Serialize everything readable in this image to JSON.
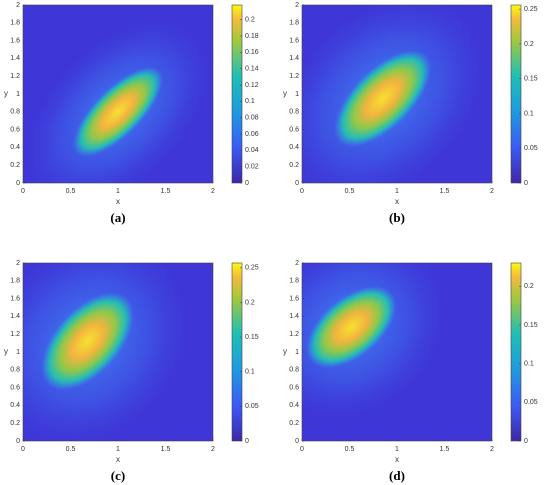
{
  "chart_data": [
    {
      "type": "heatmap",
      "caption": "(a)",
      "x_label": "x",
      "y_label": "y",
      "xlim": [
        0,
        2
      ],
      "ylim": [
        0,
        2
      ],
      "xticks": [
        0,
        0.5,
        1,
        1.5,
        2
      ],
      "yticks": [
        0,
        0.2,
        0.4,
        0.6,
        0.8,
        1,
        1.2,
        1.4,
        1.6,
        1.8,
        2
      ],
      "clim": [
        0,
        0.218
      ],
      "cticks": [
        0,
        0.02,
        0.04,
        0.06,
        0.08,
        0.1,
        0.12,
        0.14,
        0.16,
        0.18,
        0.2
      ]
    },
    {
      "type": "heatmap",
      "caption": "(b)",
      "x_label": "x",
      "y_label": "y",
      "xlim": [
        0,
        2
      ],
      "ylim": [
        0,
        2
      ],
      "xticks": [
        0,
        0.5,
        1,
        1.5,
        2
      ],
      "yticks": [
        0,
        0.2,
        0.4,
        0.6,
        0.8,
        1,
        1.2,
        1.4,
        1.6,
        1.8,
        2
      ],
      "clim": [
        0,
        0.256
      ],
      "cticks": [
        0,
        0.05,
        0.1,
        0.15,
        0.2,
        0.25
      ]
    },
    {
      "type": "heatmap",
      "caption": "(c)",
      "x_label": "x",
      "y_label": "y",
      "xlim": [
        0,
        2
      ],
      "ylim": [
        0,
        2
      ],
      "xticks": [
        0,
        0.5,
        1,
        1.5,
        2
      ],
      "yticks": [
        0,
        0.2,
        0.4,
        0.6,
        0.8,
        1,
        1.2,
        1.4,
        1.6,
        1.8,
        2
      ],
      "clim": [
        0,
        0.257
      ],
      "cticks": [
        0,
        0.05,
        0.1,
        0.15,
        0.2,
        0.25
      ]
    },
    {
      "type": "heatmap",
      "caption": "(d)",
      "x_label": "x",
      "y_label": "y",
      "xlim": [
        0,
        2
      ],
      "ylim": [
        0,
        2
      ],
      "xticks": [
        0,
        0.5,
        1,
        1.5,
        2
      ],
      "yticks": [
        0,
        0.2,
        0.4,
        0.6,
        0.8,
        1,
        1.2,
        1.4,
        1.6,
        1.8,
        2
      ],
      "clim": [
        0,
        0.23
      ],
      "cticks": [
        0,
        0.05,
        0.1,
        0.15,
        0.2
      ]
    }
  ]
}
